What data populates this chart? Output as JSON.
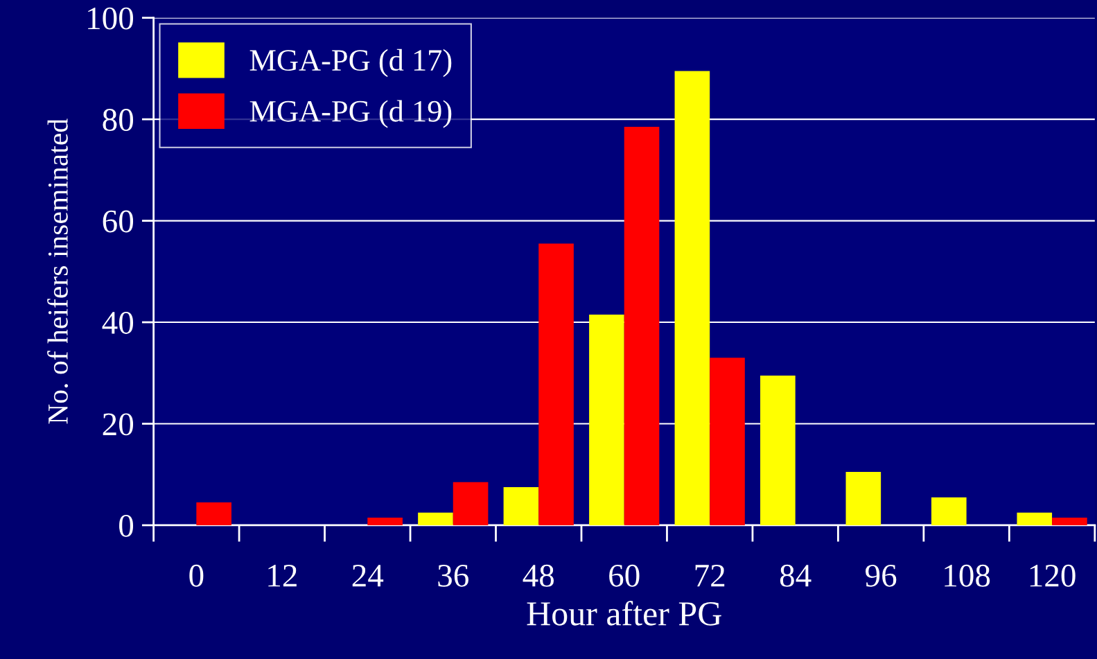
{
  "chart_data": {
    "type": "bar",
    "xlabel": "Hour after PG",
    "ylabel": "No. of heifers inseminated",
    "categories": [
      "0",
      "12",
      "24",
      "36",
      "48",
      "60",
      "72",
      "84",
      "96",
      "108",
      "120"
    ],
    "series": [
      {
        "name": "MGA-PG (d 17)",
        "color": "#ffff00",
        "values": [
          0,
          0,
          0,
          2.5,
          7.5,
          41.5,
          89.5,
          29.5,
          10.5,
          5.5,
          2.5
        ]
      },
      {
        "name": "MGA-PG (d 19)",
        "color": "#ff0000",
        "values": [
          4.5,
          0,
          1.5,
          8.5,
          55.5,
          78.5,
          33,
          0,
          0,
          0,
          1.5
        ]
      }
    ],
    "ylim": [
      0,
      100
    ],
    "yticks": [
      0,
      20,
      40,
      60,
      80,
      100
    ],
    "grid": "y",
    "legend": "top left"
  }
}
